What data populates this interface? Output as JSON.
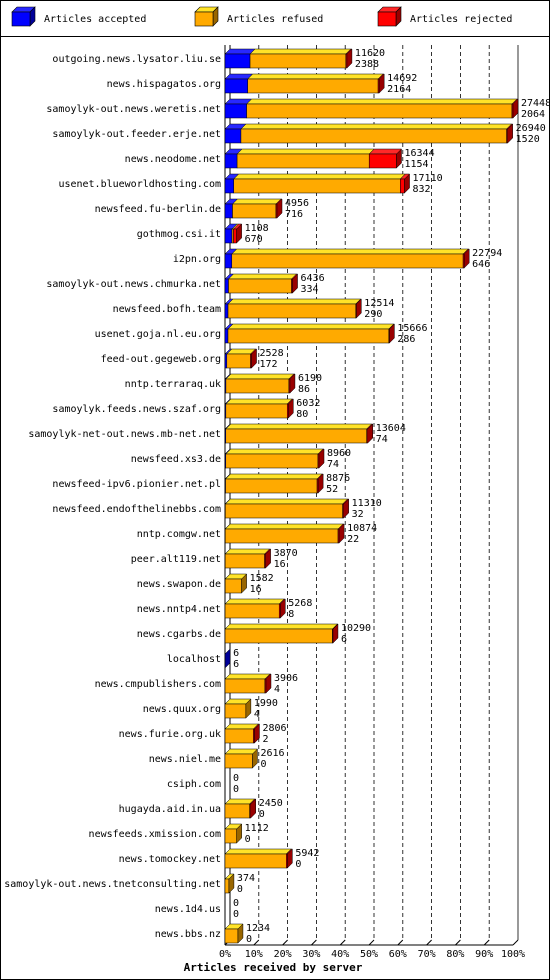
{
  "chart_data": {
    "type": "bar3d_stacked_horizontal",
    "xlabel": "Articles received by server",
    "legend": "top",
    "categories": [
      "outgoing.news.lysator.liu.se",
      "news.hispagatos.org",
      "samoylyk-out.news.weretis.net",
      "samoylyk-out.feeder.erje.net",
      "news.neodome.net",
      "usenet.blueworldhosting.com",
      "newsfeed.fu-berlin.de",
      "gothmog.csi.it",
      "i2pn.org",
      "samoylyk-out.news.chmurka.net",
      "newsfeed.bofh.team",
      "usenet.goja.nl.eu.org",
      "feed-out.gegeweb.org",
      "nntp.terraraq.uk",
      "samoylyk.feeds.news.szaf.org",
      "samoylyk-net-out.news.mb-net.net",
      "newsfeed.xs3.de",
      "newsfeed-ipv6.pionier.net.pl",
      "newsfeed.endofthelinebbs.com",
      "nntp.comgw.net",
      "peer.alt119.net",
      "news.swapon.de",
      "news.nntp4.net",
      "news.cgarbs.de",
      "localhost",
      "news.cmpublishers.com",
      "news.quux.org",
      "news.furie.org.uk",
      "news.niel.me",
      "csiph.com",
      "hugayda.aid.in.ua",
      "newsfeeds.xmission.com",
      "news.tomockey.net",
      "samoylyk-out.news.tnetconsulting.net",
      "news.1d4.us",
      "news.bbs.nz"
    ],
    "totals": [
      11620,
      14692,
      27448,
      26940,
      16344,
      17110,
      4956,
      1108,
      22794,
      6436,
      12514,
      15666,
      2528,
      6190,
      6032,
      13604,
      8960,
      8876,
      11310,
      10874,
      3870,
      1582,
      5268,
      10290,
      6,
      3906,
      1990,
      2806,
      2616,
      0,
      2450,
      1112,
      5942,
      374,
      0,
      1234
    ],
    "series": [
      {
        "name": "Articles accepted",
        "color": "#0000ff",
        "values": [
          2388,
          2164,
          2064,
          1520,
          1154,
          832,
          716,
          670,
          646,
          334,
          290,
          286,
          172,
          86,
          80,
          74,
          74,
          52,
          32,
          22,
          16,
          16,
          8,
          6,
          6,
          4,
          4,
          2,
          0,
          0,
          0,
          0,
          0,
          0,
          0,
          0
        ]
      },
      {
        "name": "Articles refused",
        "color": "#ffaa00",
        "values": [
          9132,
          12428,
          25284,
          25320,
          12590,
          15878,
          4140,
          138,
          22048,
          6002,
          12174,
          15330,
          2256,
          6004,
          5852,
          13430,
          8786,
          8724,
          11178,
          10752,
          3754,
          1566,
          5160,
          10234,
          0,
          3802,
          1986,
          2704,
          2616,
          0,
          2350,
          1112,
          5842,
          374,
          0,
          1234
        ]
      },
      {
        "name": "Articles rejected",
        "color": "#ff0000",
        "values": [
          100,
          100,
          100,
          100,
          2600,
          400,
          100,
          300,
          100,
          100,
          50,
          50,
          100,
          100,
          100,
          100,
          100,
          100,
          100,
          100,
          100,
          0,
          100,
          50,
          0,
          100,
          0,
          100,
          0,
          0,
          100,
          0,
          100,
          0,
          0,
          0
        ]
      }
    ],
    "xlim": [
      0,
      27448
    ],
    "xticks": [
      {
        "value": 0,
        "label": "0%"
      },
      {
        "value": 2744.8,
        "label": "10%"
      },
      {
        "value": 5489.6,
        "label": "20%"
      },
      {
        "value": 8234.4,
        "label": "30%"
      },
      {
        "value": 10979.2,
        "label": "40%"
      },
      {
        "value": 13724,
        "label": "50%"
      },
      {
        "value": 16468.8,
        "label": "60%"
      },
      {
        "value": 19213.6,
        "label": "70%"
      },
      {
        "value": 21958.4,
        "label": "80%"
      },
      {
        "value": 24703.2,
        "label": "90%"
      },
      {
        "value": 27448,
        "label": "100%"
      }
    ],
    "grid": true
  }
}
